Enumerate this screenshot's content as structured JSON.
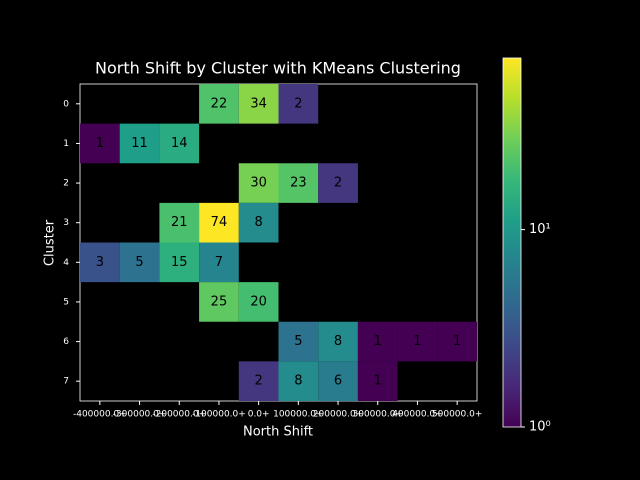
{
  "chart_data": {
    "type": "heatmap",
    "title": "North Shift by Cluster with KMeans Clustering",
    "x_label": "North Shift",
    "y_label": "Cluster",
    "x_categories": [
      "-400000.0+",
      "-300000.0+",
      "-200000.0+",
      "-100000.0+",
      "0.0+",
      "100000.0+",
      "200000.0+",
      "300000.0+",
      "400000.0+",
      "500000.0+"
    ],
    "y_categories": [
      "0",
      "1",
      "2",
      "3",
      "4",
      "5",
      "6",
      "7"
    ],
    "values": [
      [
        null,
        null,
        null,
        22,
        34,
        2,
        null,
        null,
        null,
        null
      ],
      [
        1,
        11,
        14,
        null,
        null,
        null,
        null,
        null,
        null,
        null
      ],
      [
        null,
        null,
        null,
        null,
        30,
        23,
        2,
        null,
        null,
        null
      ],
      [
        null,
        null,
        21,
        74,
        8,
        null,
        null,
        null,
        null,
        null
      ],
      [
        3,
        5,
        15,
        7,
        null,
        null,
        null,
        null,
        null,
        null
      ],
      [
        null,
        null,
        null,
        25,
        20,
        null,
        null,
        null,
        null,
        null
      ],
      [
        null,
        null,
        null,
        null,
        null,
        5,
        8,
        1,
        1,
        1
      ],
      [
        null,
        null,
        null,
        null,
        2,
        8,
        6,
        1,
        null,
        null
      ]
    ],
    "colormap": "viridis",
    "color_scale": "log",
    "zlim": [
      1,
      74
    ],
    "zticks": [
      {
        "value": 1,
        "label": "10⁰"
      },
      {
        "value": 10,
        "label": "10¹"
      }
    ]
  }
}
